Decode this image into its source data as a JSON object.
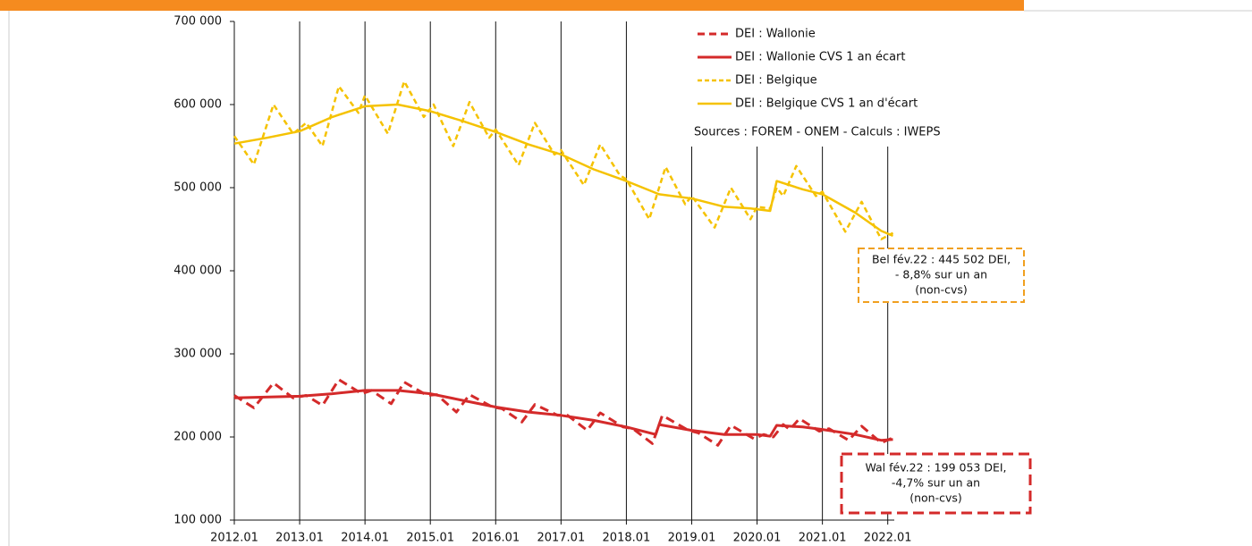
{
  "chart_data": {
    "type": "line",
    "xlim": [
      2012,
      2022.1
    ],
    "ylim": [
      100000,
      700000
    ],
    "xticks": [
      {
        "value": 2012,
        "label": "2012.01"
      },
      {
        "value": 2013,
        "label": "2013.01"
      },
      {
        "value": 2014,
        "label": "2014.01"
      },
      {
        "value": 2015,
        "label": "2015.01"
      },
      {
        "value": 2016,
        "label": "2016.01"
      },
      {
        "value": 2017,
        "label": "2017.01"
      },
      {
        "value": 2018,
        "label": "2018.01"
      },
      {
        "value": 2019,
        "label": "2019.01"
      },
      {
        "value": 2020,
        "label": "2020.01"
      },
      {
        "value": 2021,
        "label": "2021.01"
      },
      {
        "value": 2022,
        "label": "2022.01"
      }
    ],
    "yticks": [
      {
        "value": 100000,
        "label": "100 000"
      },
      {
        "value": 200000,
        "label": "200 000"
      },
      {
        "value": 300000,
        "label": "300 000"
      },
      {
        "value": 400000,
        "label": "400 000"
      },
      {
        "value": 500000,
        "label": "500 000"
      },
      {
        "value": 600000,
        "label": "600 000"
      },
      {
        "value": 700000,
        "label": "700 000"
      }
    ],
    "grid": true,
    "series": [
      {
        "name": "DEI : Wallonie",
        "color": "#d42a2a",
        "dash": true,
        "x": [
          2012.0,
          2012.3,
          2012.6,
          2012.9,
          2013.1,
          2013.35,
          2013.6,
          2013.95,
          2014.1,
          2014.4,
          2014.6,
          2014.95,
          2015.1,
          2015.4,
          2015.6,
          2015.95,
          2016.1,
          2016.4,
          2016.6,
          2016.95,
          2017.1,
          2017.4,
          2017.6,
          2017.95,
          2018.1,
          2018.4,
          2018.55,
          2018.95,
          2019.1,
          2019.4,
          2019.6,
          2019.95,
          2020.1,
          2020.25,
          2020.4,
          2020.5,
          2020.65,
          2020.95,
          2021.1,
          2021.4,
          2021.6,
          2021.9,
          2022.08
        ],
        "values": [
          250000,
          235000,
          265000,
          247000,
          250000,
          238000,
          269000,
          252000,
          256000,
          240000,
          266000,
          250000,
          251000,
          230000,
          251000,
          236000,
          234000,
          218000,
          239000,
          226000,
          226000,
          208000,
          229000,
          212000,
          210000,
          192000,
          226000,
          208000,
          205000,
          190000,
          214000,
          198000,
          203000,
          200000,
          215000,
          209000,
          222000,
          207000,
          210000,
          196000,
          213000,
          193000,
          199053
        ]
      },
      {
        "name": "DEI : Wallonie CVS 1 an écart",
        "color": "#d42a2a",
        "dash": false,
        "x": [
          2012.0,
          2013.0,
          2013.5,
          2014.0,
          2014.5,
          2015.0,
          2015.5,
          2016.0,
          2016.5,
          2017.0,
          2017.5,
          2018.0,
          2018.45,
          2018.5,
          2019.0,
          2019.5,
          2020.0,
          2020.2,
          2020.3,
          2020.7,
          2021.0,
          2021.5,
          2021.9,
          2022.08
        ],
        "values": [
          247000,
          249000,
          252000,
          256000,
          256000,
          252000,
          244000,
          236000,
          230000,
          226000,
          220000,
          212000,
          203000,
          215000,
          208000,
          203000,
          203000,
          201000,
          214000,
          212000,
          209000,
          203000,
          196000,
          197000
        ]
      },
      {
        "name": "DEI : Belgique",
        "color": "#f5c200",
        "dash": true,
        "x": [
          2012.0,
          2012.3,
          2012.6,
          2012.9,
          2013.1,
          2013.35,
          2013.6,
          2013.9,
          2014.0,
          2014.35,
          2014.6,
          2014.9,
          2015.05,
          2015.35,
          2015.6,
          2015.9,
          2016.0,
          2016.35,
          2016.6,
          2016.9,
          2017.0,
          2017.35,
          2017.6,
          2017.9,
          2018.0,
          2018.35,
          2018.6,
          2018.9,
          2019.0,
          2019.35,
          2019.6,
          2019.9,
          2020.0,
          2020.2,
          2020.3,
          2020.4,
          2020.6,
          2020.9,
          2021.0,
          2021.35,
          2021.6,
          2021.9,
          2022.08
        ],
        "values": [
          562000,
          528000,
          600000,
          565000,
          578000,
          550000,
          622000,
          590000,
          611000,
          565000,
          628000,
          585000,
          600000,
          550000,
          603000,
          560000,
          570000,
          527000,
          578000,
          540000,
          545000,
          503000,
          552000,
          515000,
          510000,
          462000,
          525000,
          480000,
          490000,
          452000,
          500000,
          462000,
          477000,
          475000,
          500000,
          490000,
          526000,
          490000,
          495000,
          447000,
          483000,
          438000,
          445502
        ]
      },
      {
        "name": "DEI : Belgique CVS 1 an d'écart",
        "color": "#f5c200",
        "dash": false,
        "x": [
          2012.0,
          2012.5,
          2013.0,
          2013.5,
          2014.0,
          2014.5,
          2015.0,
          2015.5,
          2016.0,
          2016.5,
          2017.0,
          2017.5,
          2018.0,
          2018.5,
          2019.0,
          2019.5,
          2019.9,
          2020.2,
          2020.3,
          2020.7,
          2021.0,
          2021.5,
          2021.9,
          2022.08
        ],
        "values": [
          553000,
          560000,
          568000,
          585000,
          598000,
          600000,
          592000,
          580000,
          567000,
          552000,
          540000,
          522000,
          508000,
          492000,
          487000,
          477000,
          475000,
          472000,
          508000,
          498000,
          492000,
          470000,
          448000,
          442000
        ]
      }
    ],
    "source": "Sources : FOREM - ONEM - Calculs : IWEPS",
    "annotations": [
      {
        "lines": [
          "Bel fév.22 : 445 502 DEI,",
          "- 8,8% sur un an",
          "(non-cvs)"
        ],
        "color": "#f0a020"
      },
      {
        "lines": [
          "Wal fév.22 : 199 053 DEI,",
          "-4,7% sur un an",
          "(non-cvs)"
        ],
        "color": "#d42a2a"
      }
    ]
  }
}
